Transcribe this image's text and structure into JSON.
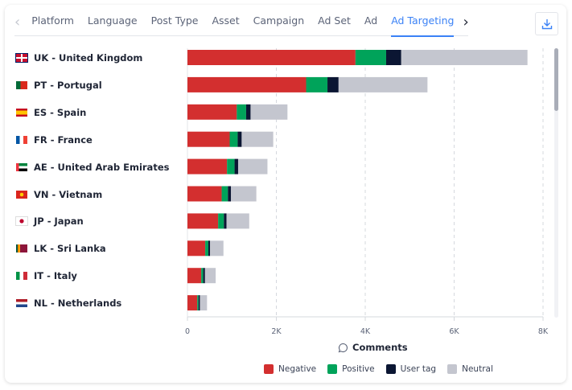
{
  "tabs": {
    "items": [
      "Platform",
      "Language",
      "Post Type",
      "Asset",
      "Campaign",
      "Ad Set",
      "Ad",
      "Ad Targeting"
    ],
    "active": "Ad Targeting"
  },
  "icons": {
    "prev": "chevron-left-icon",
    "next": "chevron-right-icon",
    "download": "download-icon",
    "comment": "comment-icon"
  },
  "chart_data": {
    "type": "bar",
    "orientation": "horizontal",
    "stacked": true,
    "categories": [
      "UK - United Kingdom",
      "PT - Portugal",
      "ES - Spain",
      "FR - France",
      "AE - United Arab Emirates",
      "VN - Vietnam",
      "JP - Japan",
      "LK - Sri Lanka",
      "IT - Italy",
      "NL - Netherlands"
    ],
    "series": [
      {
        "name": "Negative",
        "color": "#d32f2f",
        "values": [
          3780,
          2670,
          1110,
          950,
          890,
          770,
          690,
          400,
          310,
          220
        ]
      },
      {
        "name": "Positive",
        "color": "#00a35a",
        "values": [
          690,
          480,
          210,
          180,
          170,
          140,
          130,
          70,
          45,
          30
        ]
      },
      {
        "name": "User tag",
        "color": "#0b1633",
        "values": [
          340,
          250,
          100,
          90,
          80,
          70,
          60,
          40,
          40,
          30
        ]
      },
      {
        "name": "Neutral",
        "color": "#c4c6cf",
        "values": [
          2840,
          2000,
          830,
          710,
          660,
          570,
          510,
          300,
          240,
          160
        ]
      }
    ],
    "xlabel": "Comments",
    "xlim": [
      0,
      8000
    ],
    "xticks": [
      "0",
      "2K",
      "4K",
      "6K",
      "8K"
    ],
    "grid": "vertical dashed",
    "legend": "bottom"
  }
}
